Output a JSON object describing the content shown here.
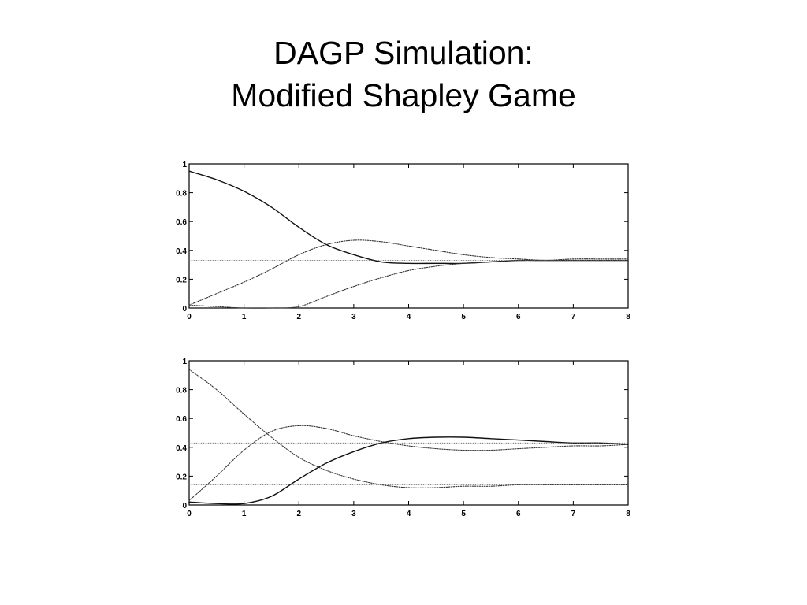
{
  "slide": {
    "title_line1": "DAGP Simulation:",
    "title_line2": "Modified Shapley Game"
  },
  "chart_data": [
    {
      "type": "line",
      "xlim": [
        0,
        8
      ],
      "ylim": [
        0,
        1
      ],
      "xticks": [
        "0",
        "1",
        "2",
        "3",
        "4",
        "5",
        "6",
        "7",
        "8"
      ],
      "yticks": [
        "0",
        "0.2",
        "0.4",
        "0.6",
        "0.8",
        "1"
      ],
      "grid": false,
      "series": [
        {
          "style": "solid",
          "x": [
            0,
            0.5,
            1,
            1.5,
            2,
            2.5,
            3,
            3.5,
            4,
            4.5,
            5,
            5.5,
            6,
            6.5,
            7,
            7.5,
            8
          ],
          "y": [
            0.95,
            0.89,
            0.81,
            0.7,
            0.56,
            0.44,
            0.37,
            0.32,
            0.31,
            0.31,
            0.31,
            0.32,
            0.33,
            0.33,
            0.33,
            0.33,
            0.33
          ]
        },
        {
          "style": "dotted",
          "x": [
            0,
            0.5,
            1,
            1.5,
            2,
            2.5,
            3,
            3.5,
            4,
            4.5,
            5,
            5.5,
            6,
            6.5,
            7,
            7.5,
            8
          ],
          "y": [
            0.02,
            0.1,
            0.18,
            0.27,
            0.37,
            0.44,
            0.47,
            0.46,
            0.43,
            0.4,
            0.37,
            0.35,
            0.34,
            0.33,
            0.33,
            0.33,
            0.33
          ]
        },
        {
          "style": "dotted",
          "x": [
            0,
            0.5,
            1,
            1.5,
            2,
            2.5,
            3,
            3.5,
            4,
            4.5,
            5,
            5.5,
            6,
            6.5,
            7,
            7.5,
            8
          ],
          "y": [
            0.02,
            0.01,
            0.0,
            0.0,
            0.01,
            0.08,
            0.15,
            0.21,
            0.26,
            0.29,
            0.31,
            0.32,
            0.33,
            0.33,
            0.34,
            0.34,
            0.34
          ]
        },
        {
          "style": "reference",
          "x": [
            0,
            8
          ],
          "y": [
            0.33,
            0.33
          ]
        }
      ]
    },
    {
      "type": "line",
      "xlim": [
        0,
        8
      ],
      "ylim": [
        0,
        1
      ],
      "xticks": [
        "0",
        "1",
        "2",
        "3",
        "4",
        "5",
        "6",
        "7",
        "8"
      ],
      "yticks": [
        "0",
        "0.2",
        "0.4",
        "0.6",
        "0.8",
        "1"
      ],
      "grid": false,
      "series": [
        {
          "style": "dotted",
          "x": [
            0,
            0.5,
            1,
            1.5,
            2,
            2.5,
            3,
            3.5,
            4,
            4.5,
            5,
            5.5,
            6,
            6.5,
            7,
            7.5,
            8
          ],
          "y": [
            0.94,
            0.8,
            0.63,
            0.47,
            0.33,
            0.24,
            0.18,
            0.14,
            0.12,
            0.12,
            0.13,
            0.13,
            0.14,
            0.14,
            0.14,
            0.14,
            0.14
          ]
        },
        {
          "style": "dotted",
          "x": [
            0,
            0.5,
            1,
            1.5,
            2,
            2.5,
            3,
            3.5,
            4,
            4.5,
            5,
            5.5,
            6,
            6.5,
            7,
            7.5,
            8
          ],
          "y": [
            0.03,
            0.2,
            0.38,
            0.51,
            0.55,
            0.53,
            0.48,
            0.44,
            0.41,
            0.39,
            0.38,
            0.38,
            0.39,
            0.4,
            0.41,
            0.41,
            0.42
          ]
        },
        {
          "style": "solid",
          "x": [
            0,
            0.5,
            1,
            1.5,
            2,
            2.5,
            3,
            3.5,
            4,
            4.5,
            5,
            5.5,
            6,
            6.5,
            7,
            7.5,
            8
          ],
          "y": [
            0.02,
            0.01,
            0.01,
            0.06,
            0.18,
            0.29,
            0.37,
            0.43,
            0.46,
            0.47,
            0.47,
            0.46,
            0.45,
            0.44,
            0.43,
            0.43,
            0.42
          ]
        },
        {
          "style": "reference",
          "x": [
            0,
            8
          ],
          "y": [
            0.43,
            0.43
          ]
        },
        {
          "style": "reference",
          "x": [
            0,
            8
          ],
          "y": [
            0.14,
            0.14
          ]
        }
      ]
    }
  ]
}
